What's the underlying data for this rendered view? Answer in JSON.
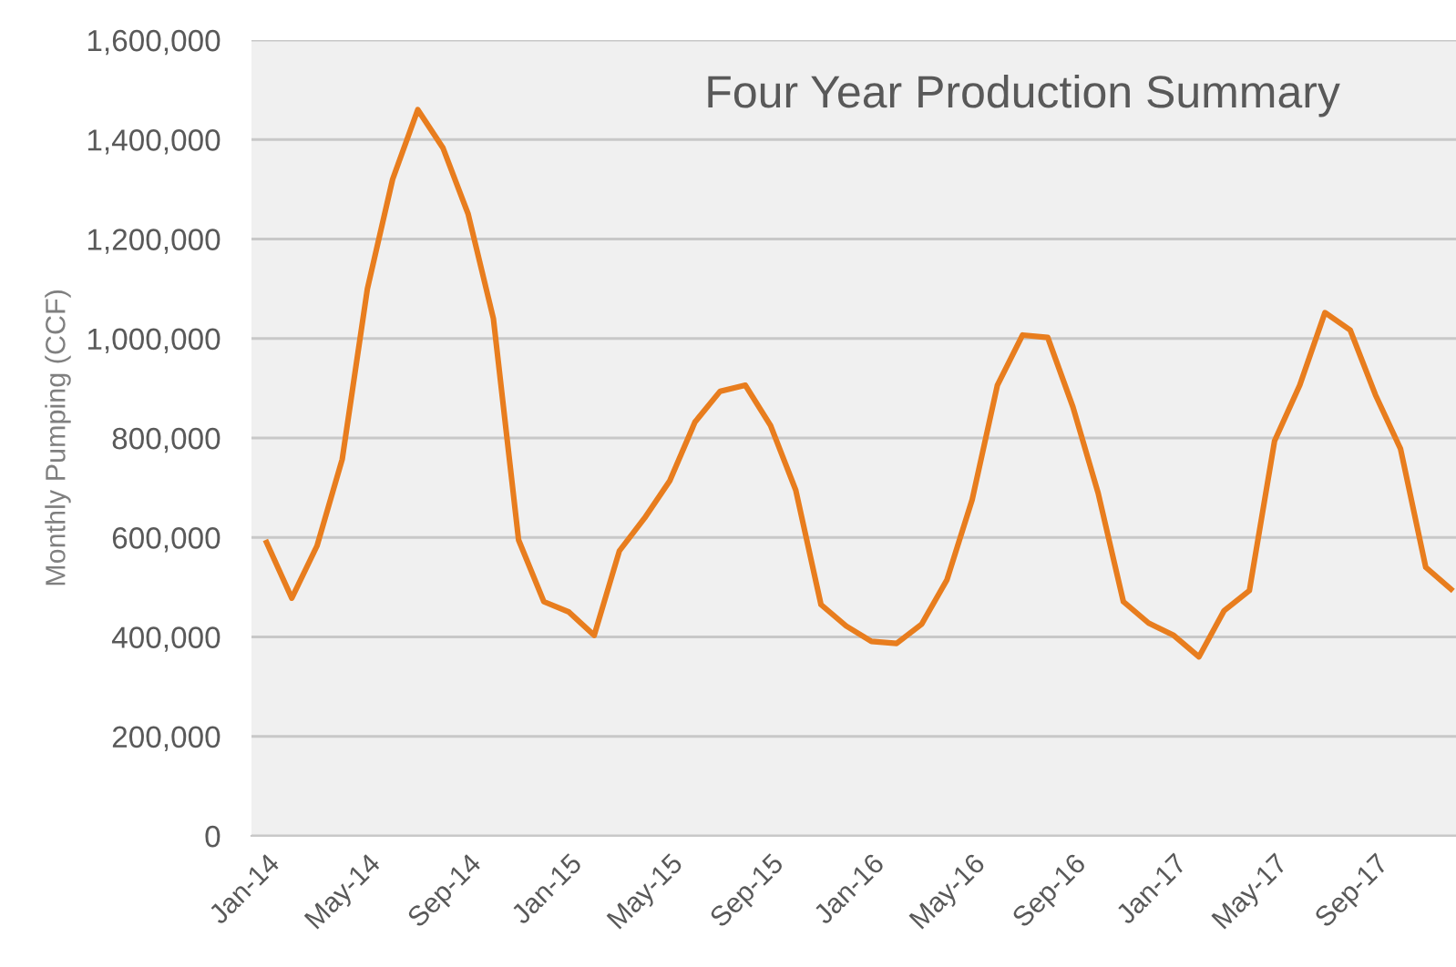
{
  "chart_data": {
    "type": "line",
    "title": "Four Year Production Summary",
    "ylabel": "Monthly Pumping (CCF)",
    "categories": [
      "Jan-14",
      null,
      null,
      null,
      "May-14",
      null,
      null,
      null,
      "Sep-14",
      null,
      null,
      null,
      "Jan-15",
      null,
      null,
      null,
      "May-15",
      null,
      null,
      null,
      "Sep-15",
      null,
      null,
      null,
      "Jan-16",
      null,
      null,
      null,
      "May-16",
      null,
      null,
      null,
      "Sep-16",
      null,
      null,
      null,
      "Jan-17",
      null,
      null,
      null,
      "May-17",
      null,
      null,
      null,
      "Sep-17",
      null,
      null,
      null
    ],
    "series": [
      {
        "color": "#e87d1e",
        "values": [
          590000,
          478000,
          583000,
          757000,
          1100000,
          1320000,
          1460000,
          1383000,
          1250000,
          1040000,
          595000,
          471000,
          450000,
          403000,
          573000,
          639000,
          714000,
          832000,
          894000,
          906000,
          825000,
          695000,
          465000,
          422000,
          391000,
          387000,
          426000,
          515000,
          676000,
          906000,
          1007000,
          1002000,
          862000,
          689000,
          471000,
          428000,
          403000,
          360000,
          453000,
          493000,
          794000,
          906000,
          1052000,
          1017000,
          887000,
          778000,
          540000,
          496000
        ]
      }
    ],
    "ylim": [
      0,
      1600000
    ],
    "yticks": [
      0,
      {
        "value": 200000,
        "label": "200,000"
      },
      {
        "value": 400000,
        "label": "400,000"
      },
      {
        "value": 600000,
        "label": "600,000"
      },
      {
        "value": 800000,
        "label": "800,000"
      },
      {
        "value": 1000000,
        "label": "1,000,000"
      },
      {
        "value": 1200000,
        "label": "1,200,000"
      },
      {
        "value": 1400000,
        "label": "1,400,000"
      },
      {
        "value": 1600000,
        "label": "1,600,000"
      }
    ],
    "grid": "y",
    "marker": "none",
    "line_style": "solid"
  }
}
